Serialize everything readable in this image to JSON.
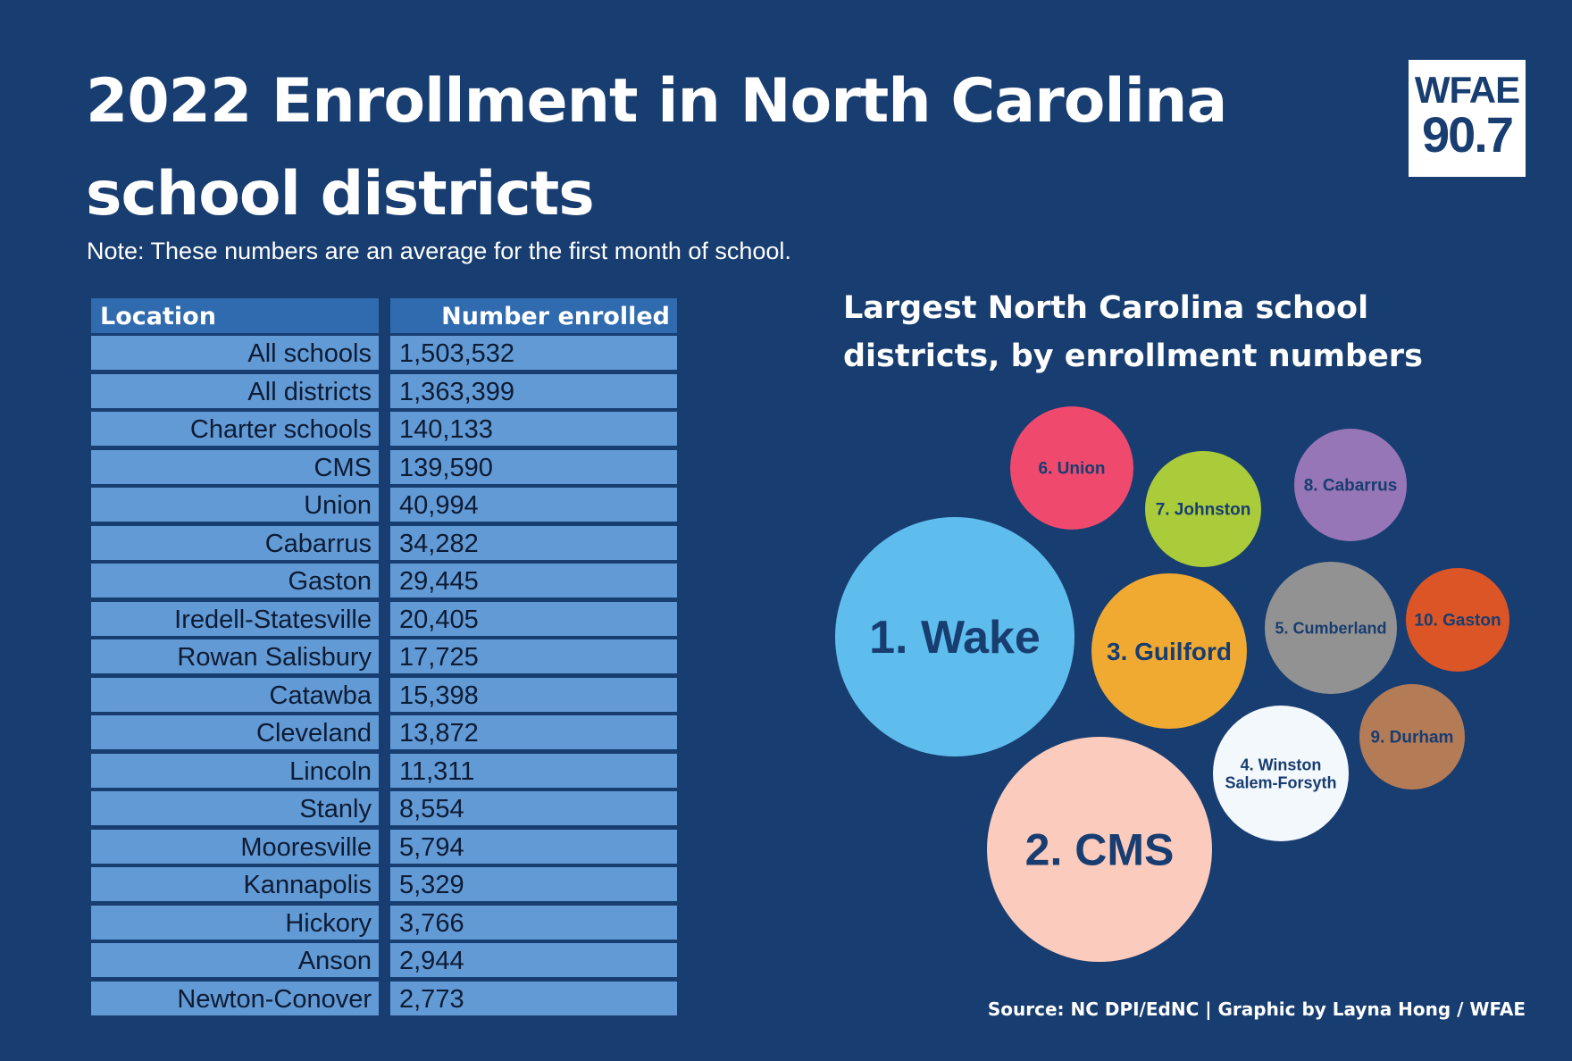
{
  "title": {
    "line1": "2022 Enrollment in North Carolina",
    "line2": "school districts"
  },
  "note": "Note: These numbers are an average for the first month of school.",
  "logo": {
    "line1": "WFAE",
    "line2": "90.7"
  },
  "table": {
    "headers": [
      "Location",
      "Number enrolled"
    ],
    "rows": [
      [
        "All schools",
        "1,503,532"
      ],
      [
        "All districts",
        "1,363,399"
      ],
      [
        "Charter schools",
        "140,133"
      ],
      [
        "CMS",
        "139,590"
      ],
      [
        "Union",
        "40,994"
      ],
      [
        "Cabarrus",
        "34,282"
      ],
      [
        "Gaston",
        "29,445"
      ],
      [
        "Iredell-Statesville",
        "20,405"
      ],
      [
        "Rowan Salisbury",
        "17,725"
      ],
      [
        "Catawba",
        "15,398"
      ],
      [
        "Cleveland",
        "13,872"
      ],
      [
        "Lincoln",
        "11,311"
      ],
      [
        "Stanly",
        "8,554"
      ],
      [
        "Mooresville",
        "5,794"
      ],
      [
        "Kannapolis",
        "5,329"
      ],
      [
        "Hickory",
        "3,766"
      ],
      [
        "Anson",
        "2,944"
      ],
      [
        "Newton-Conover",
        "2,773"
      ]
    ]
  },
  "chart_data": {
    "type": "bubble",
    "title": "Largest North Carolina school districts, by enrollment numbers",
    "title_lines": [
      "Largest North Carolina school",
      "districts, by enrollment numbers"
    ],
    "items": [
      {
        "rank": 1,
        "label": "1. Wake",
        "label_lines": [
          "1. Wake"
        ],
        "color": "#5fbdee"
      },
      {
        "rank": 2,
        "label": "2. CMS",
        "label_lines": [
          "2. CMS"
        ],
        "color": "#fbcbbd"
      },
      {
        "rank": 3,
        "label": "3. Guilford",
        "label_lines": [
          "3. Guilford"
        ],
        "color": "#f0aa32"
      },
      {
        "rank": 4,
        "label": "4. Winston Salem-Forsyth",
        "label_lines": [
          "4. Winston",
          "Salem-Forsyth"
        ],
        "color": "#f3f8fd"
      },
      {
        "rank": 5,
        "label": "5. Cumberland",
        "label_lines": [
          "5. Cumberland"
        ],
        "color": "#929292"
      },
      {
        "rank": 6,
        "label": "6. Union",
        "label_lines": [
          "6. Union"
        ],
        "color": "#ef4a6e"
      },
      {
        "rank": 7,
        "label": "7. Johnston",
        "label_lines": [
          "7. Johnston"
        ],
        "color": "#aacb3a"
      },
      {
        "rank": 8,
        "label": "8. Cabarrus",
        "label_lines": [
          "8. Cabarrus"
        ],
        "color": "#9676b6"
      },
      {
        "rank": 9,
        "label": "9. Durham",
        "label_lines": [
          "9. Durham"
        ],
        "color": "#b47b57"
      },
      {
        "rank": 10,
        "label": "10. Gaston",
        "label_lines": [
          "10. Gaston"
        ],
        "color": "#dc5526"
      }
    ]
  },
  "source": "Source: NC DPI/EdNC | Graphic by Layna Hong / WFAE",
  "colors": {
    "background": "#183d70",
    "table_cell": "#629ad6",
    "table_header": "#2f6bae"
  }
}
